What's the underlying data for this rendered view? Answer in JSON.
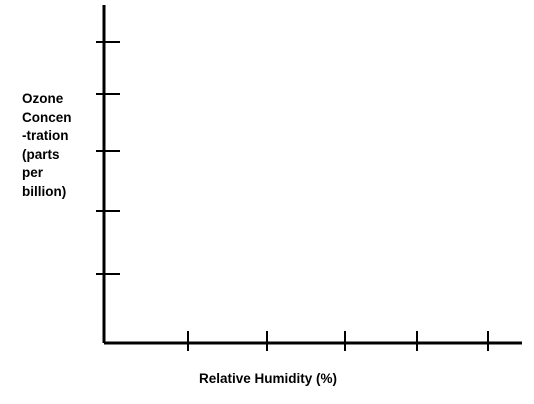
{
  "chart_data": {
    "type": "line",
    "title": "",
    "xlabel": "Relative Humidity (%)",
    "ylabel_lines": [
      "Ozone",
      "Concen",
      "-tration",
      "(parts",
      "per",
      "billion)"
    ],
    "x_tick_count": 5,
    "y_tick_count": 5,
    "x_tick_labels": [],
    "y_tick_labels": [],
    "series": [],
    "grid": false,
    "axis_color": "#000000"
  }
}
